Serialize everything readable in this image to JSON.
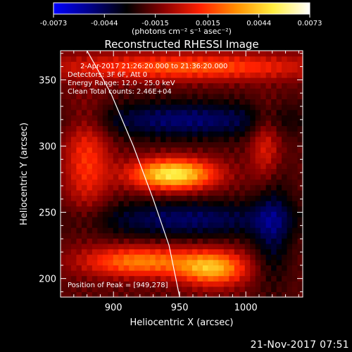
{
  "colorbar": {
    "tick_labels": [
      "-0.0073",
      "-0.0044",
      "-0.0015",
      "0.0015",
      "0.0044",
      "0.0073"
    ],
    "unit_label": "(photons cm⁻² s⁻¹ asec⁻²)",
    "colors": [
      "#0000ff",
      "#000088",
      "#000000",
      "#8a0000",
      "#ff2000",
      "#ff9000",
      "#ffee40",
      "#ffffff"
    ],
    "range": [
      -0.0073,
      0.0073
    ]
  },
  "chart_data": {
    "type": "heatmap",
    "title": "Reconstructed RHESSI Image",
    "xlabel": "Heliocentric X (arcsec)",
    "ylabel": "Heliocentric Y (arcsec)",
    "xlim": [
      860,
      1043
    ],
    "ylim": [
      186,
      372
    ],
    "xticks": [
      "900",
      "950",
      "1000"
    ],
    "yticks": [
      "200",
      "250",
      "300",
      "350"
    ],
    "xtick_values": [
      900,
      950,
      1000
    ],
    "ytick_values": [
      200,
      250,
      300,
      350
    ],
    "annotations": [
      "2-Apr-2017 21:26:20.000 to 21:36:20.000",
      "Detectors: 3F 6F, Att 0",
      "Energy Range: 12.0 - 25.0 keV",
      "Clean     Total counts: 2.46E+04"
    ],
    "peak_label": "Position of Peak = [949,278]",
    "peak": [
      949,
      278
    ],
    "limb_curve": [
      [
        880,
        372
      ],
      [
        898,
        340
      ],
      [
        915,
        300
      ],
      [
        930,
        260
      ],
      [
        942,
        225
      ],
      [
        950,
        186
      ]
    ],
    "sources": [
      {
        "x": 945,
        "y": 279,
        "sx": 22,
        "sy": 8,
        "amp": 0.0073
      },
      {
        "x": 975,
        "y": 208,
        "sx": 18,
        "sy": 9,
        "amp": 0.0055
      },
      {
        "x": 920,
        "y": 213,
        "sx": 30,
        "sy": 8,
        "amp": 0.0046
      },
      {
        "x": 955,
        "y": 360,
        "sx": 70,
        "sy": 7,
        "amp": 0.0038
      },
      {
        "x": 880,
        "y": 290,
        "sx": 12,
        "sy": 28,
        "amp": 0.003
      },
      {
        "x": 1015,
        "y": 300,
        "sx": 8,
        "sy": 20,
        "amp": 0.0025
      }
    ],
    "negative_bands": [
      {
        "x": 955,
        "y": 320,
        "sx": 55,
        "sy": 10,
        "amp": -0.003
      },
      {
        "x": 955,
        "y": 245,
        "sx": 55,
        "sy": 10,
        "amp": -0.0028
      },
      {
        "x": 1020,
        "y": 240,
        "sx": 10,
        "sy": 30,
        "amp": -0.0022
      }
    ]
  },
  "footer": {
    "datetime": "21-Nov-2017 07:51"
  }
}
